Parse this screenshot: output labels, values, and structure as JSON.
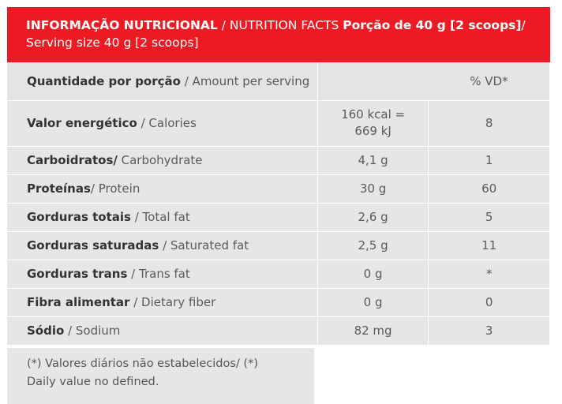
{
  "header": {
    "title_pt": "INFORMAÇÃO NUTRICIONAL",
    "title_en": " / NUTRITION FACTS ",
    "serving_pt": "Porção de 40 g [2 scoops]",
    "slash": "/",
    "serving_en": "Serving size 40 g [2 scoops]"
  },
  "columns": {
    "amount_pt": "Quantidade por porção",
    "amount_en": " / Amount per serving",
    "dv": "% VD*"
  },
  "rows": [
    {
      "pt": "Valor energético",
      "en": " / Calories",
      "amount_line1": "160 kcal =",
      "amount_line2": "669 kJ",
      "dv": "8"
    },
    {
      "pt": "Carboidratos/",
      "en": " Carbohydrate",
      "amount": "4,1 g",
      "dv": "1"
    },
    {
      "pt": "Proteínas",
      "en": "/ Protein",
      "amount": "30 g",
      "dv": "60"
    },
    {
      "pt": "Gorduras totais",
      "en": " / Total fat",
      "amount": "2,6 g",
      "dv": "5"
    },
    {
      "pt": "Gorduras saturadas",
      "en": " / Saturated fat",
      "amount": "2,5 g",
      "dv": "11"
    },
    {
      "pt": "Gorduras trans",
      "en": " / Trans fat",
      "amount": "0 g",
      "dv": "*"
    },
    {
      "pt": "Fibra alimentar",
      "en": " / Dietary fiber",
      "amount": "0 g",
      "dv": "0"
    },
    {
      "pt": "Sódio",
      "en": " / Sodium",
      "amount": "82 mg",
      "dv": "3"
    }
  ],
  "footnote": {
    "line1": "(*) Valores diários não estabelecidos/ (*)",
    "line2": "Daily value no defined."
  },
  "colors": {
    "header_bg": "#ec1b23",
    "row_bg": "#e6e6e6"
  }
}
